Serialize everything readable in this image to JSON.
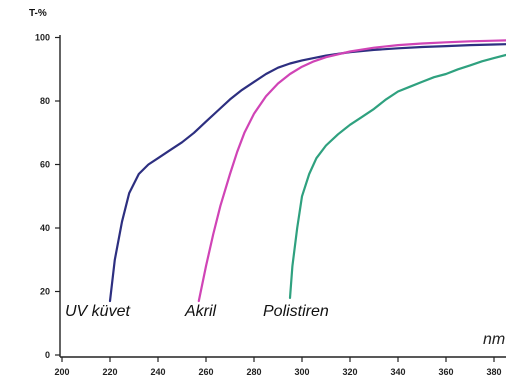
{
  "chart_data": {
    "type": "line",
    "ylabel": "T-%",
    "xlabel": "nm",
    "xlim": [
      200,
      390
    ],
    "ylim": [
      0,
      100
    ],
    "x_ticks": [
      200,
      220,
      240,
      260,
      280,
      300,
      320,
      340,
      360,
      380
    ],
    "y_ticks": [
      0,
      20,
      40,
      60,
      80,
      100
    ],
    "grid": false,
    "series": [
      {
        "name": "UV küvet",
        "color": "#2d2f80",
        "x": [
          220,
          222,
          225,
          228,
          232,
          236,
          240,
          245,
          250,
          255,
          260,
          265,
          270,
          275,
          280,
          285,
          290,
          295,
          300,
          310,
          320,
          330,
          340,
          350,
          360,
          370,
          380,
          390
        ],
        "y": [
          17,
          30,
          42,
          51,
          57,
          60,
          62,
          64.5,
          67,
          70,
          73.5,
          77,
          80.5,
          83.5,
          86,
          88.5,
          90.5,
          91.8,
          92.8,
          94.3,
          95.4,
          96.1,
          96.6,
          97,
          97.3,
          97.6,
          97.8,
          98
        ]
      },
      {
        "name": "Akril",
        "color": "#d044b6",
        "x": [
          257,
          260,
          263,
          266,
          270,
          273,
          276,
          280,
          285,
          290,
          295,
          300,
          305,
          310,
          320,
          330,
          340,
          350,
          360,
          370,
          380,
          390
        ],
        "y": [
          17,
          28,
          38,
          47,
          57,
          64,
          70,
          76,
          81.5,
          85.5,
          88.5,
          90.8,
          92.5,
          93.8,
          95.6,
          96.8,
          97.6,
          98.1,
          98.5,
          98.8,
          99,
          99.2
        ]
      },
      {
        "name": "Polistiren",
        "color": "#2fa17f",
        "x": [
          295,
          296,
          298,
          300,
          303,
          306,
          310,
          315,
          320,
          325,
          330,
          335,
          340,
          345,
          350,
          355,
          360,
          365,
          370,
          375,
          380,
          385,
          390
        ],
        "y": [
          18,
          28,
          40,
          50,
          57,
          62,
          66,
          69.5,
          72.5,
          75,
          77.5,
          80.5,
          83,
          84.5,
          86,
          87.5,
          88.5,
          90,
          91.2,
          92.5,
          93.5,
          94.5,
          95.3
        ]
      }
    ]
  }
}
